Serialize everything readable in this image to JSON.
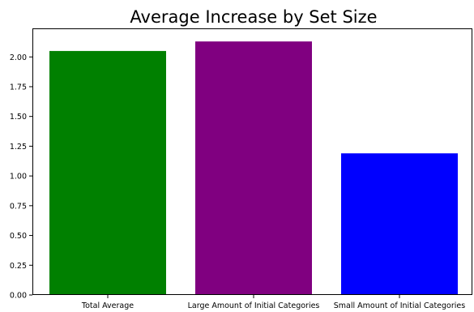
{
  "chart_data": {
    "type": "bar",
    "title": "Average Increase by Set Size",
    "xlabel": "",
    "ylabel": "",
    "categories": [
      "Total Average",
      "Large Amount of Initial Categories",
      "Small Amount of Initial Categories"
    ],
    "values": [
      2.05,
      2.13,
      1.19
    ],
    "colors": [
      "#008000",
      "#800080",
      "#0000ff"
    ],
    "ylim": [
      0,
      2.24
    ],
    "yticks": [
      "0.00",
      "0.25",
      "0.50",
      "0.75",
      "1.00",
      "1.25",
      "1.50",
      "1.75",
      "2.00"
    ],
    "grid": false,
    "legend": "none"
  }
}
